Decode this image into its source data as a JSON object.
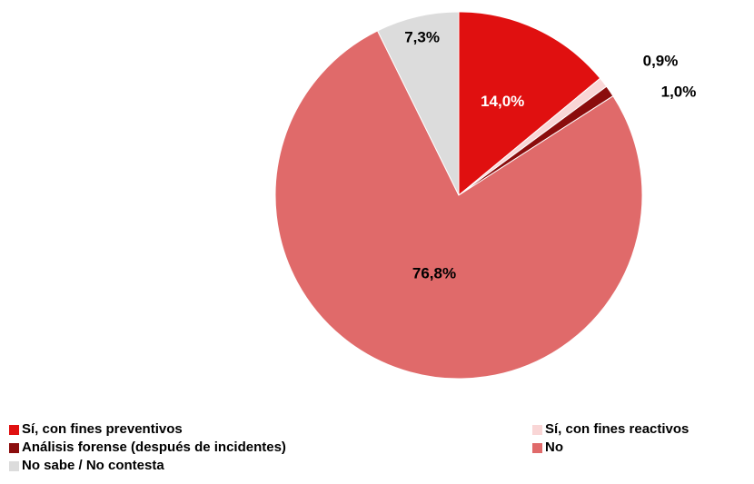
{
  "chart_data": {
    "type": "pie",
    "start_angle_deg": 0,
    "direction": "clockwise",
    "legend_position": "bottom",
    "slices": [
      {
        "name": "Sí, con fines preventivos",
        "value": 14.0,
        "label": "14,0%",
        "color": "#e01010",
        "label_color": "#ffffff",
        "label_placement": "inside"
      },
      {
        "name": "Sí, con fines reactivos",
        "value": 0.9,
        "label": "0,9%",
        "color": "#f9d6d6",
        "label_color": "#000000",
        "label_placement": "outside-leader"
      },
      {
        "name": "Análisis forense (después de incidentes)",
        "value": 1.0,
        "label": "1,0%",
        "color": "#8b0d0d",
        "label_color": "#000000",
        "label_placement": "outside"
      },
      {
        "name": "No",
        "value": 76.8,
        "label": "76,8%",
        "color": "#e06a6a",
        "label_color": "#000000",
        "label_placement": "inside"
      },
      {
        "name": "No sabe / No contesta",
        "value": 7.3,
        "label": "7,3%",
        "color": "#dcdcdc",
        "label_color": "#000000",
        "label_placement": "inside"
      }
    ]
  },
  "legend": {
    "items": [
      {
        "label": "Sí, con fines preventivos",
        "color": "#e01010"
      },
      {
        "label": "Sí, con fines reactivos",
        "color": "#f9d6d6"
      },
      {
        "label": "Análisis forense (después de incidentes)",
        "color": "#8b0d0d"
      },
      {
        "label": "No",
        "color": "#e06a6a"
      },
      {
        "label": "No sabe / No contesta",
        "color": "#dcdcdc"
      }
    ]
  }
}
